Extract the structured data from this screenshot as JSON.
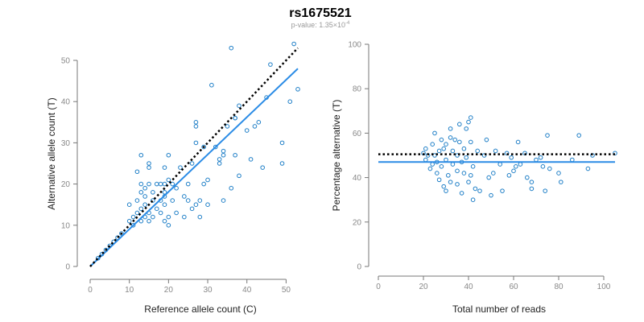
{
  "header": {
    "title": "rs1675521",
    "pvalue_prefix": "p-value: 1.35×10",
    "pvalue_exp": "-4"
  },
  "colors": {
    "points": "#1f7fc7",
    "fit_line": "#2b8ce6",
    "reference_line": "#000000",
    "axis": "#777777"
  },
  "chart_data": [
    {
      "type": "scatter",
      "xlabel": "Reference allele count (C)",
      "ylabel": "Alternative allele count (T)",
      "xlim": [
        0,
        53
      ],
      "ylim": [
        0,
        52
      ],
      "xticks": [
        0,
        10,
        20,
        30,
        40,
        50
      ],
      "yticks": [
        0,
        10,
        20,
        30,
        40,
        50
      ],
      "reference_line": {
        "style": "dotted",
        "x": [
          0,
          53
        ],
        "y": [
          0,
          53
        ]
      },
      "fit_line": {
        "style": "solid",
        "x": [
          0,
          53
        ],
        "y": [
          0,
          48
        ]
      },
      "points": [
        [
          2,
          2
        ],
        [
          3,
          3
        ],
        [
          4,
          4
        ],
        [
          5,
          5
        ],
        [
          6,
          6
        ],
        [
          7,
          7
        ],
        [
          8,
          8
        ],
        [
          10,
          11
        ],
        [
          10,
          15
        ],
        [
          11,
          10
        ],
        [
          11,
          12
        ],
        [
          12,
          13
        ],
        [
          12,
          16
        ],
        [
          12,
          23
        ],
        [
          13,
          11
        ],
        [
          13,
          14
        ],
        [
          13,
          18
        ],
        [
          13,
          20
        ],
        [
          13,
          27
        ],
        [
          14,
          12
        ],
        [
          14,
          15
        ],
        [
          14,
          17
        ],
        [
          14,
          19
        ],
        [
          15,
          11
        ],
        [
          15,
          13
        ],
        [
          15,
          20
        ],
        [
          15,
          24
        ],
        [
          15,
          25
        ],
        [
          16,
          12
        ],
        [
          16,
          16
        ],
        [
          16,
          18
        ],
        [
          17,
          14
        ],
        [
          17,
          20
        ],
        [
          18,
          13
        ],
        [
          18,
          16
        ],
        [
          18,
          20
        ],
        [
          19,
          11
        ],
        [
          19,
          15
        ],
        [
          19,
          17
        ],
        [
          19,
          18
        ],
        [
          19,
          20
        ],
        [
          19,
          24
        ],
        [
          20,
          10
        ],
        [
          20,
          12
        ],
        [
          20,
          21
        ],
        [
          20,
          27
        ],
        [
          21,
          16
        ],
        [
          21,
          20
        ],
        [
          22,
          13
        ],
        [
          22,
          19
        ],
        [
          23,
          24
        ],
        [
          24,
          17
        ],
        [
          24,
          12
        ],
        [
          25,
          16
        ],
        [
          25,
          20
        ],
        [
          26,
          14
        ],
        [
          26,
          25
        ],
        [
          27,
          15
        ],
        [
          27,
          30
        ],
        [
          27,
          34
        ],
        [
          27,
          35
        ],
        [
          28,
          12
        ],
        [
          28,
          16
        ],
        [
          29,
          20
        ],
        [
          29,
          29
        ],
        [
          30,
          21
        ],
        [
          30,
          15
        ],
        [
          31,
          44
        ],
        [
          32,
          29
        ],
        [
          33,
          26
        ],
        [
          33,
          25
        ],
        [
          34,
          16
        ],
        [
          34,
          27
        ],
        [
          34,
          28
        ],
        [
          35,
          34
        ],
        [
          36,
          19
        ],
        [
          36,
          53
        ],
        [
          37,
          27
        ],
        [
          37,
          36
        ],
        [
          37,
          36
        ],
        [
          38,
          22
        ],
        [
          38,
          39
        ],
        [
          40,
          33
        ],
        [
          41,
          26
        ],
        [
          42,
          34
        ],
        [
          43,
          35
        ],
        [
          44,
          24
        ],
        [
          45,
          41
        ],
        [
          46,
          49
        ],
        [
          49,
          25
        ],
        [
          49,
          30
        ],
        [
          51,
          40
        ],
        [
          52,
          54
        ],
        [
          53,
          43
        ]
      ]
    },
    {
      "type": "scatter",
      "xlabel": "Total number of reads",
      "ylabel": "Percentage alternative (T)",
      "xlim": [
        0,
        105
      ],
      "ylim": [
        0,
        100
      ],
      "xticks": [
        0,
        20,
        40,
        60,
        80,
        100
      ],
      "yticks": [
        0,
        20,
        40,
        60,
        80,
        100
      ],
      "reference_line": {
        "style": "dotted",
        "y": 50.5
      },
      "fit_line": {
        "style": "solid",
        "y": 47
      },
      "points": [
        [
          20,
          51
        ],
        [
          21,
          48
        ],
        [
          21,
          53
        ],
        [
          22,
          50
        ],
        [
          23,
          44
        ],
        [
          24,
          46
        ],
        [
          24,
          55
        ],
        [
          25,
          60
        ],
        [
          25,
          50
        ],
        [
          26,
          42
        ],
        [
          26,
          47
        ],
        [
          27,
          39
        ],
        [
          27,
          52
        ],
        [
          28,
          57
        ],
        [
          28,
          45
        ],
        [
          29,
          36
        ],
        [
          29,
          53
        ],
        [
          30,
          34
        ],
        [
          30,
          48
        ],
        [
          30,
          55
        ],
        [
          31,
          41
        ],
        [
          32,
          58
        ],
        [
          32,
          62
        ],
        [
          32,
          38
        ],
        [
          33,
          46
        ],
        [
          33,
          52
        ],
        [
          34,
          57
        ],
        [
          35,
          37
        ],
        [
          35,
          43
        ],
        [
          35,
          50
        ],
        [
          36,
          56
        ],
        [
          36,
          64
        ],
        [
          37,
          33
        ],
        [
          37,
          47
        ],
        [
          38,
          42
        ],
        [
          38,
          53
        ],
        [
          39,
          49
        ],
        [
          39,
          62
        ],
        [
          40,
          65
        ],
        [
          40,
          38
        ],
        [
          41,
          41
        ],
        [
          41,
          67
        ],
        [
          41,
          56
        ],
        [
          42,
          30
        ],
        [
          42,
          45
        ],
        [
          43,
          35
        ],
        [
          44,
          52
        ],
        [
          45,
          34
        ],
        [
          47,
          50
        ],
        [
          48,
          57
        ],
        [
          49,
          40
        ],
        [
          50,
          32
        ],
        [
          51,
          42
        ],
        [
          52,
          52
        ],
        [
          54,
          46
        ],
        [
          55,
          34
        ],
        [
          57,
          51
        ],
        [
          58,
          41
        ],
        [
          59,
          49
        ],
        [
          60,
          43
        ],
        [
          61,
          45
        ],
        [
          62,
          56
        ],
        [
          63,
          46
        ],
        [
          65,
          51
        ],
        [
          66,
          40
        ],
        [
          68,
          38
        ],
        [
          68,
          35
        ],
        [
          70,
          48
        ],
        [
          72,
          49
        ],
        [
          73,
          45
        ],
        [
          74,
          34
        ],
        [
          75,
          59
        ],
        [
          76,
          44
        ],
        [
          80,
          42
        ],
        [
          81,
          38
        ],
        [
          86,
          48
        ],
        [
          89,
          59
        ],
        [
          93,
          44
        ],
        [
          95,
          50
        ],
        [
          105,
          51
        ]
      ]
    }
  ]
}
